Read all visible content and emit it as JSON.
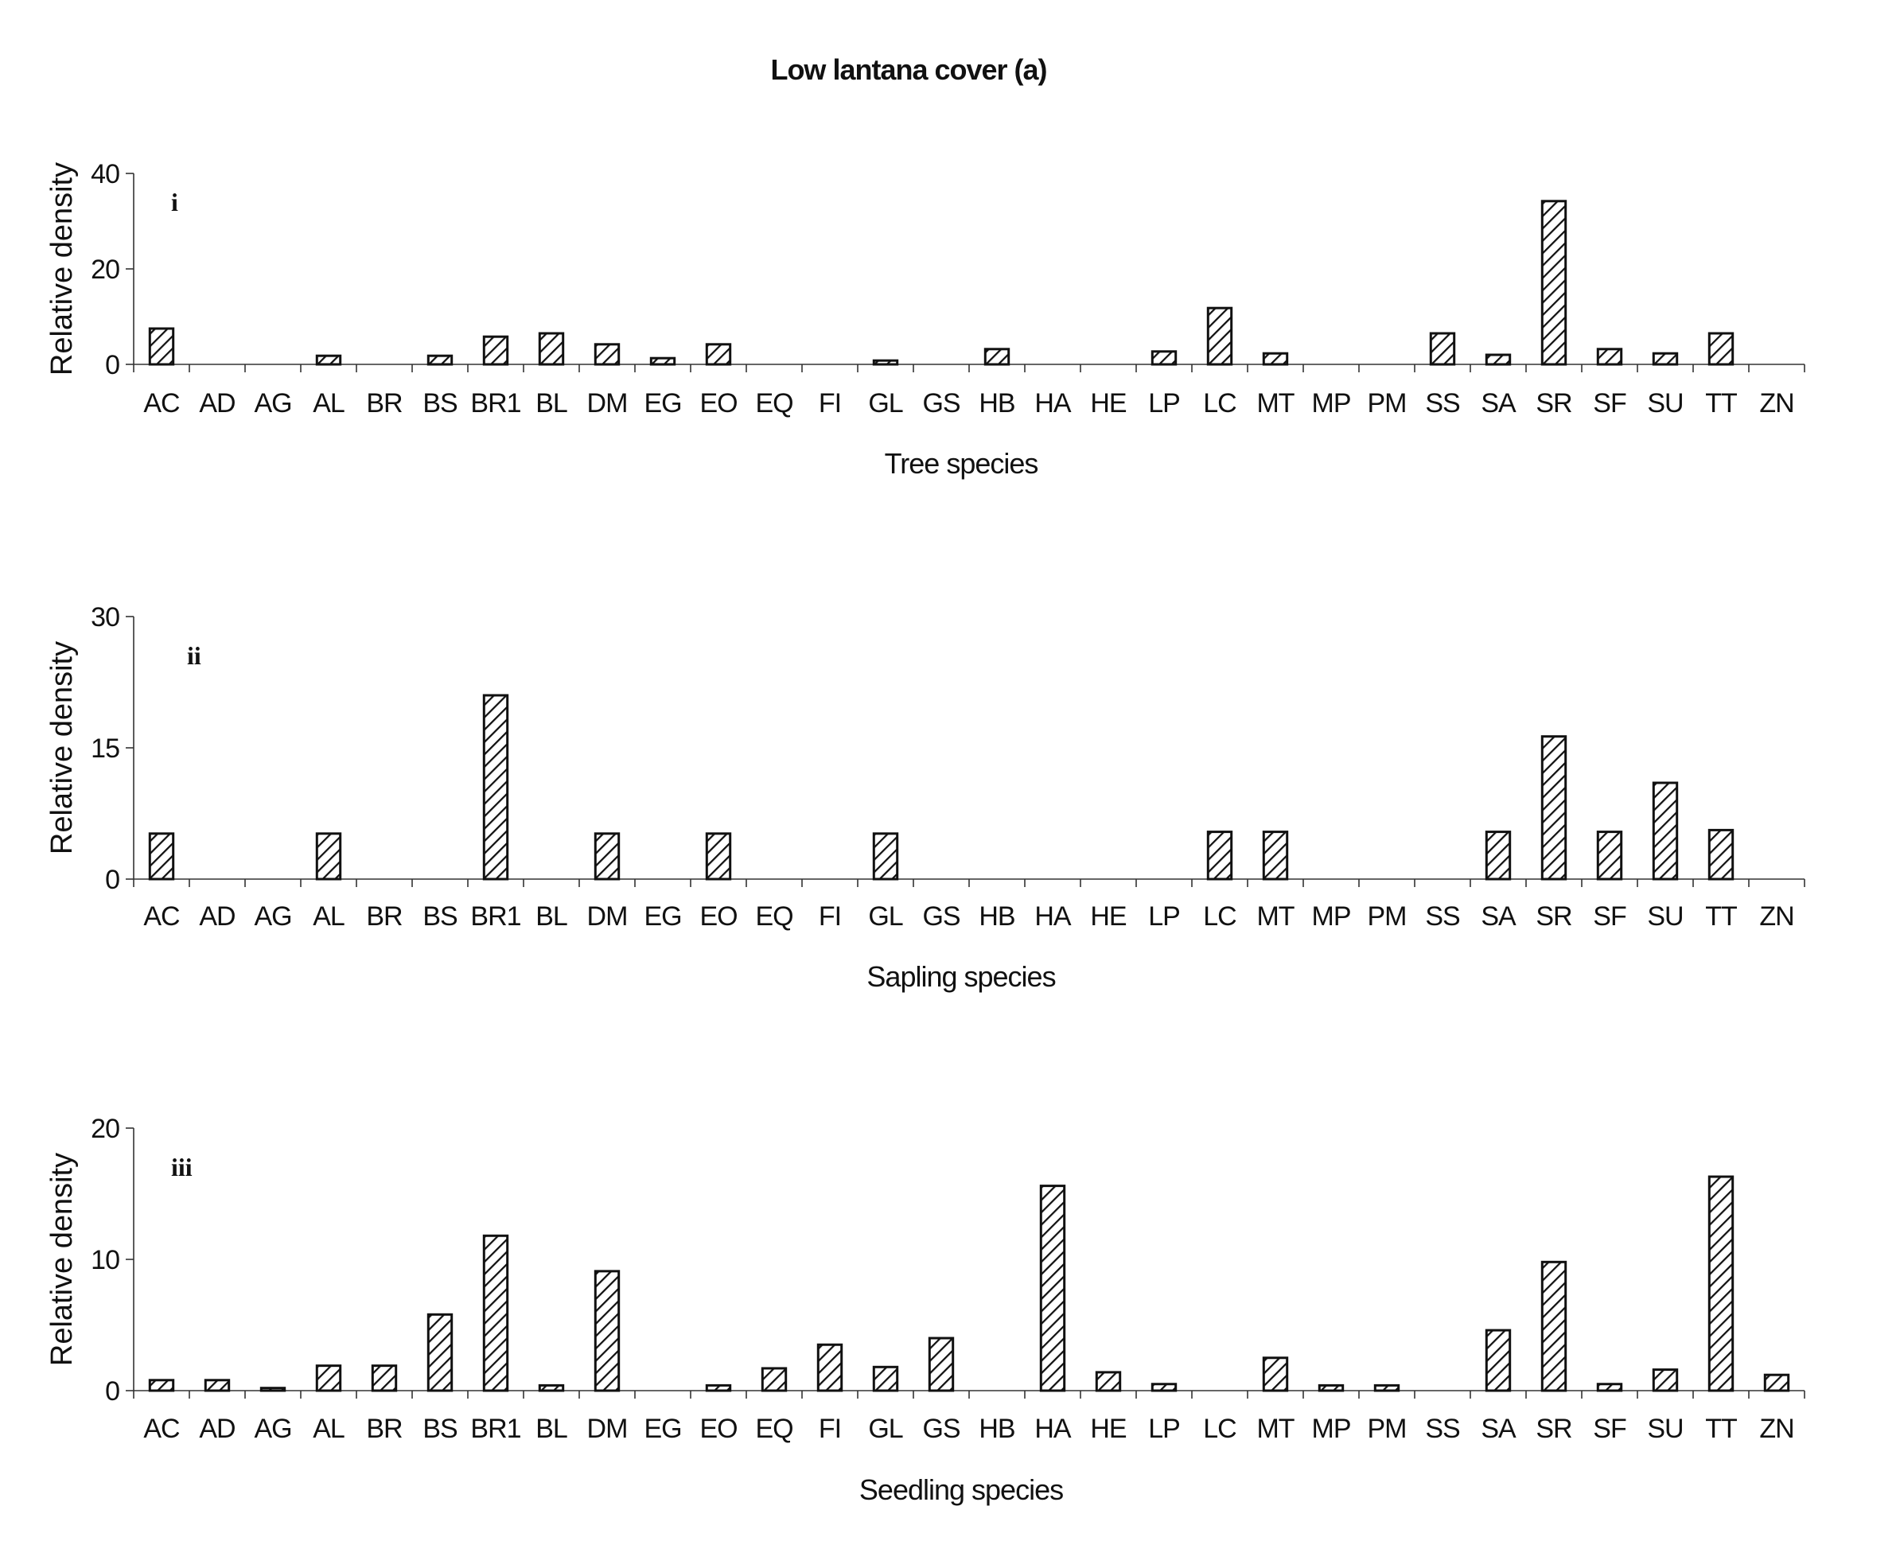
{
  "figure_title": "Low lantana cover (a)",
  "chart_data": [
    {
      "type": "bar",
      "panel": "i",
      "xlabel": "Tree species",
      "ylabel": "Relative density",
      "ylim": [
        0,
        40
      ],
      "yticks": [
        0,
        20,
        40
      ],
      "categories": [
        "AC",
        "AD",
        "AG",
        "AL",
        "BR",
        "BS",
        "BR1",
        "BL",
        "DM",
        "EG",
        "EO",
        "EQ",
        "FI",
        "GL",
        "GS",
        "HB",
        "HA",
        "HE",
        "LP",
        "LC",
        "MT",
        "MP",
        "PM",
        "SS",
        "SA",
        "SR",
        "SF",
        "SU",
        "TT",
        "ZN"
      ],
      "values": [
        7.5,
        0,
        0,
        1.8,
        0,
        1.8,
        5.8,
        6.5,
        4.2,
        1.3,
        4.2,
        0,
        0,
        0.8,
        0,
        3.2,
        0,
        0,
        2.7,
        11.8,
        2.3,
        0,
        0,
        6.5,
        2.0,
        34.2,
        3.2,
        2.3,
        6.5,
        0
      ]
    },
    {
      "type": "bar",
      "panel": "ii",
      "xlabel": "Sapling species",
      "ylabel": "Relative density",
      "ylim": [
        0,
        30
      ],
      "yticks": [
        0,
        15,
        30
      ],
      "categories": [
        "AC",
        "AD",
        "AG",
        "AL",
        "BR",
        "BS",
        "BR1",
        "BL",
        "DM",
        "EG",
        "EO",
        "EQ",
        "FI",
        "GL",
        "GS",
        "HB",
        "HA",
        "HE",
        "LP",
        "LC",
        "MT",
        "MP",
        "PM",
        "SS",
        "SA",
        "SR",
        "SF",
        "SU",
        "TT",
        "ZN"
      ],
      "values": [
        5.2,
        0,
        0,
        5.2,
        0,
        0,
        21.0,
        0,
        5.2,
        0,
        5.2,
        0,
        0,
        5.2,
        0,
        0,
        0,
        0,
        0,
        5.4,
        5.4,
        0,
        0,
        0,
        5.4,
        16.3,
        5.4,
        11.0,
        5.6,
        0
      ]
    },
    {
      "type": "bar",
      "panel": "iii",
      "xlabel": "Seedling species",
      "ylabel": "Relative density",
      "ylim": [
        0,
        20
      ],
      "yticks": [
        0,
        10,
        20
      ],
      "categories": [
        "AC",
        "AD",
        "AG",
        "AL",
        "BR",
        "BS",
        "BR1",
        "BL",
        "DM",
        "EG",
        "EO",
        "EQ",
        "FI",
        "GL",
        "GS",
        "HB",
        "HA",
        "HE",
        "LP",
        "LC",
        "MT",
        "MP",
        "PM",
        "SS",
        "SA",
        "SR",
        "SF",
        "SU",
        "TT",
        "ZN"
      ],
      "values": [
        0.8,
        0.8,
        0.2,
        1.9,
        1.9,
        5.8,
        11.8,
        0.4,
        9.1,
        0,
        0.4,
        1.7,
        3.5,
        1.8,
        4.0,
        0,
        15.6,
        1.4,
        0.5,
        0,
        2.5,
        0.4,
        0.4,
        0,
        4.6,
        9.8,
        0.5,
        1.6,
        16.3,
        1.2
      ]
    }
  ]
}
